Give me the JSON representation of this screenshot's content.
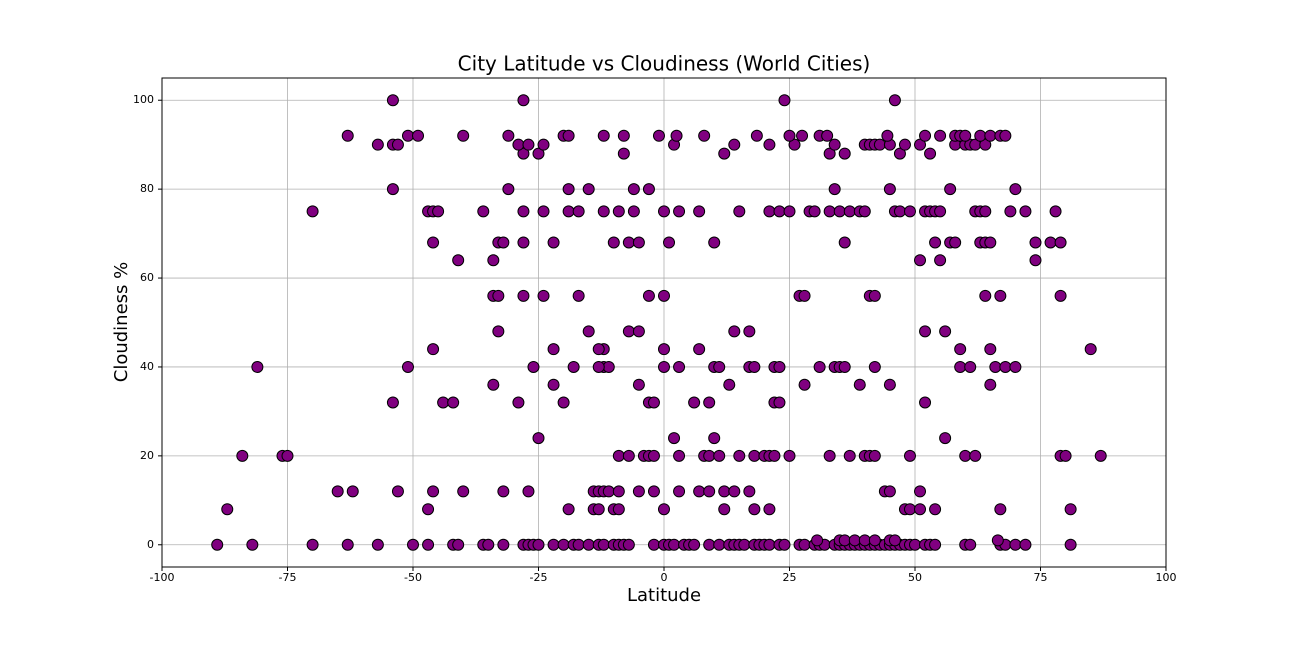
{
  "chart_data": {
    "type": "scatter",
    "title": "City Latitude vs Cloudiness (World Cities)",
    "x_label": "Latitude",
    "y_label": "Cloudiness %",
    "color": "#800080",
    "edge_color": "#000000",
    "grid": true,
    "xlim": [
      -100,
      100
    ],
    "xticks": [
      -100,
      -75,
      -50,
      -25,
      0,
      25,
      50,
      75,
      100
    ],
    "ylim": [
      -5,
      105
    ],
    "yticks": [
      0,
      20,
      40,
      60,
      80,
      100
    ],
    "x": [
      -89,
      -82,
      -70,
      -63,
      -57,
      -50,
      -47,
      -42,
      -41,
      -36,
      -35,
      -32,
      -28,
      -27,
      -26,
      -25,
      -22,
      -20,
      -18,
      -17,
      -15,
      -13,
      -12,
      -10,
      -9,
      -8,
      -7,
      -2,
      0,
      1,
      2,
      4,
      5,
      6,
      9,
      11,
      13,
      14,
      15,
      16,
      18,
      19,
      20,
      21,
      23,
      24,
      27,
      28,
      30,
      31,
      32,
      34,
      35,
      36,
      37,
      38,
      39,
      40,
      41,
      42,
      43,
      44,
      45,
      46,
      47,
      48,
      49,
      50,
      52,
      53,
      54,
      60,
      61,
      67,
      68,
      70,
      72,
      81,
      30.5,
      35,
      36,
      38,
      40,
      42,
      45,
      46,
      66.5,
      -87,
      -47,
      -19,
      -14,
      -13,
      -10,
      -9,
      0,
      12,
      18,
      21,
      48,
      49,
      51,
      54,
      67,
      81,
      -65,
      -62,
      -53,
      -46,
      -40,
      -32,
      -27,
      -14,
      -13,
      -12,
      -11,
      -9,
      -5,
      -2,
      3,
      7,
      9,
      12,
      14,
      17,
      44,
      45,
      51,
      -84,
      -76,
      -75,
      -9,
      -7,
      -4,
      -3,
      -2,
      3,
      8,
      9,
      11,
      15,
      18,
      20,
      21,
      22,
      25,
      33,
      37,
      40,
      41,
      42,
      49,
      60,
      62,
      79,
      80,
      87,
      -25,
      2,
      10,
      56,
      -54,
      -44,
      -42,
      -29,
      -20,
      -3,
      -2,
      6,
      9,
      22,
      23,
      52,
      -34,
      -22,
      -5,
      13,
      28,
      39,
      45,
      65,
      -81,
      -51,
      -26,
      -18,
      -12,
      -11,
      -13,
      0,
      3,
      10,
      11,
      17,
      18,
      22,
      23,
      31,
      34,
      35,
      36,
      42,
      59,
      61,
      66,
      68,
      70,
      -46,
      -22,
      -12,
      -13,
      0,
      7,
      59,
      65,
      85,
      -33,
      -15,
      -7,
      -5,
      14,
      17,
      52,
      56,
      -34,
      -33,
      -28,
      -24,
      -17,
      -3,
      0,
      27,
      28,
      41,
      42,
      64,
      67,
      79,
      -41,
      -34,
      51,
      55,
      74,
      -46,
      -33,
      -32,
      -28,
      -22,
      -10,
      -7,
      -5,
      1,
      10,
      36,
      54,
      57,
      58,
      63,
      64,
      65,
      74,
      77,
      79,
      -70,
      -47,
      -46,
      -45,
      -36,
      -28,
      -24,
      -19,
      -17,
      -12,
      -9,
      -6,
      0,
      3,
      7,
      15,
      21,
      23,
      25,
      29,
      30,
      33,
      35,
      37,
      39,
      40,
      46,
      47,
      49,
      52,
      53,
      54,
      55,
      62,
      63,
      64,
      69,
      72,
      78,
      -54,
      -31,
      -19,
      -15,
      -6,
      -3,
      34,
      45,
      57,
      70,
      -28,
      -25,
      -8,
      12,
      33,
      36,
      47,
      53,
      -57,
      -54,
      -53,
      -29,
      -27,
      -24,
      2,
      14,
      21,
      26,
      34,
      40,
      41,
      42,
      43,
      45,
      48,
      51,
      58,
      60,
      61,
      62,
      64,
      -63,
      -51,
      -49,
      -40,
      -31,
      -20,
      -19,
      -12,
      -8,
      -1,
      2.5,
      8,
      18.5,
      25,
      27.5,
      31,
      32.5,
      44.5,
      52,
      55,
      58,
      59,
      60,
      63,
      65,
      67,
      68,
      -54,
      -28,
      24,
      46
    ],
    "values": [
      0,
      0,
      0,
      0,
      0,
      0,
      0,
      0,
      0,
      0,
      0,
      0,
      0,
      0,
      0,
      0,
      0,
      0,
      0,
      0,
      0,
      0,
      0,
      0,
      0,
      0,
      0,
      0,
      0,
      0,
      0,
      0,
      0,
      0,
      0,
      0,
      0,
      0,
      0,
      0,
      0,
      0,
      0,
      0,
      0,
      0,
      0,
      0,
      0,
      0,
      0,
      0,
      0,
      0,
      0,
      0,
      0,
      0,
      0,
      0,
      0,
      0,
      0,
      0,
      0,
      0,
      0,
      0,
      0,
      0,
      0,
      0,
      0,
      0,
      0,
      0,
      0,
      0,
      1,
      1,
      1,
      1,
      1,
      1,
      1,
      1,
      1,
      8,
      8,
      8,
      8,
      8,
      8,
      8,
      8,
      8,
      8,
      8,
      8,
      8,
      8,
      8,
      8,
      8,
      12,
      12,
      12,
      12,
      12,
      12,
      12,
      12,
      12,
      12,
      12,
      12,
      12,
      12,
      12,
      12,
      12,
      12,
      12,
      12,
      12,
      12,
      12,
      20,
      20,
      20,
      20,
      20,
      20,
      20,
      20,
      20,
      20,
      20,
      20,
      20,
      20,
      20,
      20,
      20,
      20,
      20,
      20,
      20,
      20,
      20,
      20,
      20,
      20,
      20,
      20,
      20,
      24,
      24,
      24,
      24,
      32,
      32,
      32,
      32,
      32,
      32,
      32,
      32,
      32,
      32,
      32,
      32,
      36,
      36,
      36,
      36,
      36,
      36,
      36,
      36,
      40,
      40,
      40,
      40,
      40,
      40,
      40,
      40,
      40,
      40,
      40,
      40,
      40,
      40,
      40,
      40,
      40,
      40,
      40,
      40,
      40,
      40,
      40,
      40,
      40,
      44,
      44,
      44,
      44,
      44,
      44,
      44,
      44,
      44,
      48,
      48,
      48,
      48,
      48,
      48,
      48,
      48,
      56,
      56,
      56,
      56,
      56,
      56,
      56,
      56,
      56,
      56,
      56,
      56,
      56,
      56,
      64,
      64,
      64,
      64,
      64,
      68,
      68,
      68,
      68,
      68,
      68,
      68,
      68,
      68,
      68,
      68,
      68,
      68,
      68,
      68,
      68,
      68,
      68,
      68,
      68,
      75,
      75,
      75,
      75,
      75,
      75,
      75,
      75,
      75,
      75,
      75,
      75,
      75,
      75,
      75,
      75,
      75,
      75,
      75,
      75,
      75,
      75,
      75,
      75,
      75,
      75,
      75,
      75,
      75,
      75,
      75,
      75,
      75,
      75,
      75,
      75,
      75,
      75,
      75,
      80,
      80,
      80,
      80,
      80,
      80,
      80,
      80,
      80,
      80,
      88,
      88,
      88,
      88,
      88,
      88,
      88,
      88,
      90,
      90,
      90,
      90,
      90,
      90,
      90,
      90,
      90,
      90,
      90,
      90,
      90,
      90,
      90,
      90,
      90,
      90,
      90,
      90,
      90,
      90,
      90,
      92,
      92,
      92,
      92,
      92,
      92,
      92,
      92,
      92,
      92,
      92,
      92,
      92,
      92,
      92,
      92,
      92,
      92,
      92,
      92,
      92,
      92,
      92,
      92,
      92,
      92,
      92,
      100,
      100,
      100,
      100
    ]
  }
}
